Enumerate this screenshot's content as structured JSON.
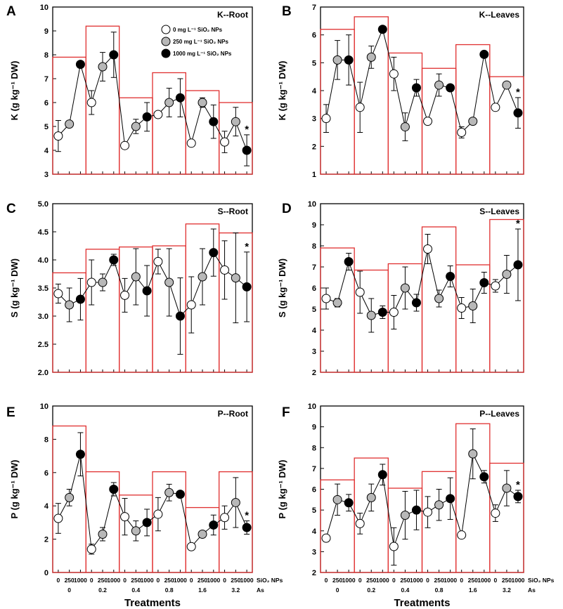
{
  "chart_data": [
    {
      "type": "line",
      "panel": "A",
      "title": "K--Root",
      "ylabel": "K (g kg⁻¹ DW)",
      "ylim": [
        3,
        10
      ],
      "yticks": [
        3,
        4,
        5,
        6,
        7,
        8,
        9,
        10
      ],
      "values": [
        4.6,
        5.1,
        7.6,
        6.0,
        7.5,
        8.0,
        4.2,
        5.0,
        5.4,
        5.5,
        6.0,
        6.2,
        4.3,
        6.0,
        5.2,
        4.35,
        5.2,
        4.0
      ],
      "errors": [
        0.65,
        0,
        0,
        0.5,
        0.6,
        0.95,
        0,
        0.3,
        0.6,
        0,
        0.6,
        0.8,
        0,
        0.2,
        0.7,
        0.45,
        0.6,
        0.65
      ],
      "group_means": [
        7.9,
        9.2,
        6.2,
        7.25,
        6.5,
        6.0
      ],
      "significance": "*",
      "legend": [
        "0 mg L⁻¹ SiO₂ NPs",
        "250 mg L⁻¹ SiO₂ NPs",
        "1000 mg L⁻¹ SiO₂ NPs"
      ]
    },
    {
      "type": "line",
      "panel": "B",
      "title": "K--Leaves",
      "ylabel": "K (g kg⁻¹ DW)",
      "ylim": [
        1,
        7
      ],
      "yticks": [
        1,
        2,
        3,
        4,
        5,
        6,
        7
      ],
      "values": [
        3.0,
        5.1,
        5.1,
        3.4,
        5.2,
        6.2,
        4.6,
        2.7,
        4.1,
        2.9,
        4.2,
        4.1,
        2.5,
        2.9,
        5.3,
        3.4,
        4.2,
        3.2
      ],
      "errors": [
        0.5,
        0.7,
        0.9,
        0.9,
        0.4,
        0.1,
        0.6,
        0.5,
        0.3,
        0,
        0.4,
        0,
        0.2,
        0,
        0,
        0,
        0,
        0.55
      ],
      "group_means": [
        6.2,
        6.65,
        5.35,
        4.8,
        5.65,
        4.5
      ],
      "significance": "*"
    },
    {
      "type": "line",
      "panel": "C",
      "title": "S--Root",
      "ylabel": "S (g kg⁻¹ DW)",
      "ylim": [
        2.0,
        5.0
      ],
      "yticks": [
        "2.0",
        "2.5",
        "3.0",
        "3.5",
        "4.0",
        "4.5",
        "5.0"
      ],
      "values": [
        3.4,
        3.2,
        3.3,
        3.6,
        3.6,
        4.0,
        3.37,
        3.7,
        3.45,
        3.97,
        3.6,
        3.0,
        3.2,
        3.7,
        4.13,
        3.82,
        3.68,
        3.52
      ],
      "errors": [
        0.17,
        0.3,
        0.37,
        0.4,
        0.15,
        0.1,
        0.3,
        0.5,
        0.45,
        0.22,
        0.6,
        0.68,
        0.5,
        0.5,
        0.42,
        0.52,
        0.8,
        0.62
      ],
      "group_means": [
        3.77,
        4.19,
        4.23,
        4.25,
        4.64,
        4.48
      ],
      "significance": "*"
    },
    {
      "type": "line",
      "panel": "D",
      "title": "S--Leaves",
      "ylabel": "S (g kg⁻¹ DW)",
      "ylim": [
        2,
        10
      ],
      "yticks": [
        2,
        3,
        4,
        5,
        6,
        7,
        8,
        9,
        10
      ],
      "values": [
        5.5,
        5.3,
        7.25,
        5.8,
        4.7,
        4.85,
        4.85,
        6.0,
        5.3,
        7.85,
        5.5,
        6.55,
        5.05,
        5.15,
        6.25,
        6.1,
        6.65,
        7.1
      ],
      "errors": [
        0.5,
        0.2,
        0.4,
        1.0,
        0.8,
        0.3,
        0.8,
        1.0,
        0.4,
        0.7,
        0.4,
        0.5,
        0.5,
        0.8,
        0.5,
        0.3,
        0.9,
        1.7
      ],
      "group_means": [
        7.9,
        6.85,
        7.15,
        8.9,
        7.1,
        9.25
      ],
      "significance": "*"
    },
    {
      "type": "line",
      "panel": "E",
      "title": "P--Root",
      "ylabel": "P (g kg⁻¹ DW)",
      "ylim": [
        0,
        10
      ],
      "yticks": [
        0,
        2,
        4,
        6,
        8,
        10
      ],
      "values": [
        3.25,
        4.5,
        7.1,
        1.4,
        2.3,
        5.0,
        3.35,
        2.5,
        3.0,
        3.5,
        4.8,
        4.7,
        1.55,
        2.3,
        2.85,
        3.3,
        4.2,
        2.7
      ],
      "errors": [
        0.9,
        0.5,
        1.3,
        0.3,
        0.4,
        0.4,
        1.1,
        0.6,
        0.8,
        1.0,
        0.5,
        0,
        0,
        0,
        0.6,
        0.7,
        1.5,
        0.4
      ],
      "group_means": [
        8.8,
        6.05,
        4.65,
        6.05,
        3.9,
        6.05
      ],
      "significance": "*",
      "xgroups": [
        "0",
        "0.2",
        "0.4",
        "0.8",
        "1.6",
        "3.2"
      ],
      "xticks": [
        "0",
        "250",
        "1000"
      ],
      "xseries_label": "SiO₂ NPs",
      "xgroup_label": "As",
      "xlabel": "Treatments"
    },
    {
      "type": "line",
      "panel": "F",
      "title": "P--Leaves",
      "ylabel": "P (g kg⁻¹ DW)",
      "ylim": [
        2,
        10
      ],
      "yticks": [
        2,
        3,
        4,
        5,
        6,
        7,
        8,
        9,
        10
      ],
      "values": [
        3.65,
        5.5,
        5.35,
        4.35,
        5.6,
        6.7,
        3.25,
        4.75,
        5.0,
        4.9,
        5.25,
        5.55,
        3.8,
        7.7,
        6.6,
        4.85,
        6.05,
        5.65
      ],
      "errors": [
        0,
        0.75,
        0.4,
        0.5,
        0.65,
        0.5,
        0.9,
        1.15,
        0.95,
        0.75,
        0.75,
        1.0,
        0.15,
        1.2,
        0.3,
        0.4,
        0.85,
        0.3
      ],
      "group_means": [
        6.45,
        7.5,
        6.05,
        6.85,
        9.15,
        7.25
      ],
      "significance": "*",
      "xgroups": [
        "0",
        "0.2",
        "0.4",
        "0.8",
        "1.6",
        "3.2"
      ],
      "xticks": [
        "0",
        "250",
        "1000"
      ],
      "xseries_label": "SiO₂ NPs",
      "xgroup_label": "As",
      "xlabel": "Treatments"
    }
  ],
  "colors": {
    "dose_0": "#ffffff",
    "dose_250": "#b8b8b8",
    "dose_1000": "#000000",
    "group_box": "#e03030",
    "line": "#000000"
  }
}
